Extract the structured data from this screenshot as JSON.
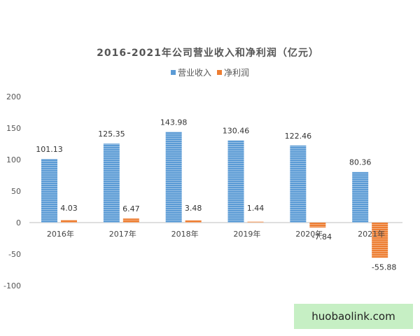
{
  "chart_data": {
    "type": "bar",
    "title": "2016-2021年公司营业收入和净利润（亿元）",
    "categories": [
      "2016年",
      "2017年",
      "2018年",
      "2019年",
      "2020年",
      "2021年"
    ],
    "series": [
      {
        "name": "营业收入",
        "values": [
          101.13,
          125.35,
          143.98,
          130.46,
          122.46,
          80.36
        ],
        "color": "#5b9bd5"
      },
      {
        "name": "净利润",
        "values": [
          4.03,
          6.47,
          3.48,
          1.44,
          -7.84,
          -55.88
        ],
        "color": "#ed7d31"
      }
    ],
    "yticks": [
      200,
      150,
      100,
      50,
      0,
      -50,
      -100
    ],
    "ylim": [
      -100,
      200
    ],
    "xlabel": "",
    "ylabel": "",
    "legend": "top-center",
    "grid": false
  },
  "watermark": {
    "text": "huobaolink.com"
  }
}
